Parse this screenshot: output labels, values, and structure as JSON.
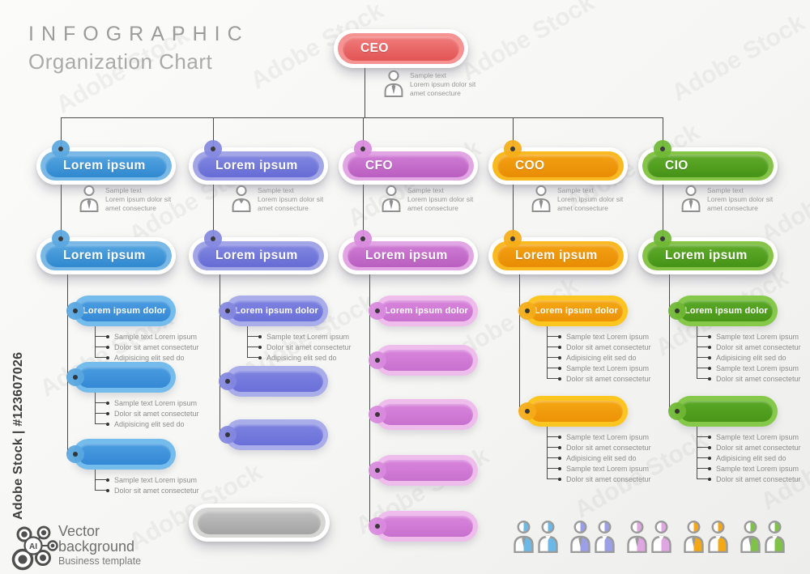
{
  "watermark": {
    "tile_label": "Adobe Stock",
    "id_label": "Adobe Stock | #123607026"
  },
  "header": {
    "title": "INFOGRAPHIC",
    "subtitle": "Organization Chart"
  },
  "footer": {
    "logo_text": "AI",
    "line1": "Vector",
    "line2": "background",
    "line3": "Business template"
  },
  "profile_note": {
    "line1": "Sample text",
    "line2": "Lorem ipsum dolor sit",
    "line3": "amet consecture"
  },
  "colors": {
    "red": {
      "mid": "#f59292",
      "top": "#f17c7c",
      "bot": "#e25454",
      "circle": "#ef8a8a"
    },
    "blue": {
      "mid": "#7ab9e6",
      "top": "#55a5e0",
      "bot": "#2f88cf",
      "smMid": "#74bcec",
      "smTop": "#4a9de0",
      "smBot": "#3588d4",
      "circle": "#5aa7e0"
    },
    "purple": {
      "mid": "#a3a6e6",
      "top": "#8287e0",
      "bot": "#666cd4",
      "smMid": "#a9ade9",
      "smTop": "#7d82e0",
      "smBot": "#6a70d8",
      "circle": "#8488e0"
    },
    "pink": {
      "mid": "#e2a6e4",
      "top": "#cf7cd4",
      "bot": "#b95ec0",
      "smMid": "#eebdeb",
      "smTop": "#d885dc",
      "smBot": "#c870ce",
      "circle": "#d98ade"
    },
    "orange": {
      "mid": "#f8ba20",
      "top": "#f4a112",
      "bot": "#e88c04",
      "smMid": "#fcc51f",
      "smTop": "#f5a713",
      "smBot": "#ec9206",
      "circle": "#f6ad18"
    },
    "green": {
      "mid": "#85c447",
      "top": "#61ab2a",
      "bot": "#459317",
      "smMid": "#86c84a",
      "smTop": "#5aa826",
      "smBot": "#499619",
      "circle": "#6fb834"
    },
    "gray": {
      "mid": "#d6d6d5",
      "top": "#c0c0c0",
      "bot": "#a4a4a4",
      "circle": "#c4c4c4"
    },
    "line": "#4b4b4b"
  },
  "chart": {
    "root": {
      "label": "CEO",
      "color": "red",
      "icon": "person-tie-icon"
    },
    "columns": [
      {
        "color": "blue",
        "level1_label": "Lorem ipsum",
        "level2_label": "Lorem ipsum",
        "icon": "person-tie-icon",
        "children": [
          {
            "label": "Lorem ipsum dolor",
            "bullets": [
              "Sample text Lorem ipsum",
              "Dolor sit amet consectetur",
              "Adipisicing elit sed do"
            ]
          },
          {
            "label": "",
            "bullets": [
              "Sample text Lorem ipsum",
              "Dolor sit amet consectetur",
              "Adipisicing elit sed do"
            ]
          },
          {
            "label": "",
            "bullets": [
              "Sample text Lorem ipsum",
              "Dolor sit amet consectetur"
            ]
          }
        ]
      },
      {
        "color": "purple",
        "level1_label": "Lorem ipsum",
        "level2_label": "Lorem ipsum",
        "icon": "person-vneck-icon",
        "children": [
          {
            "label": "Lorem ipsum dolor",
            "bullets": [
              "Sample text Lorem ipsum",
              "Dolor sit amet consectetur",
              "Adipisicing elit sed do"
            ]
          },
          {
            "label": "",
            "bullets": []
          },
          {
            "label": "",
            "bullets": []
          }
        ]
      },
      {
        "color": "pink",
        "level1_label": "CFO",
        "level2_label": "Lorem ipsum",
        "icon": "person-tie-icon",
        "children": [
          {
            "label": "Lorem ipsum dolor",
            "bullets": []
          },
          {
            "label": "",
            "bullets": []
          },
          {
            "label": "",
            "bullets": []
          },
          {
            "label": "",
            "bullets": []
          },
          {
            "label": "",
            "bullets": []
          }
        ]
      },
      {
        "color": "orange",
        "level1_label": "COO",
        "level2_label": "Lorem ipsum",
        "icon": "person-tie-icon",
        "children": [
          {
            "label": "Lorem ipsum dolor",
            "bullets": [
              "Sample text Lorem ipsum",
              "Dolor sit amet consectetur",
              "Adipisicing elit sed do",
              "Sample text Lorem ipsum",
              "Dolor sit amet consectetur"
            ]
          },
          {
            "label": "",
            "bullets": [
              "Sample text Lorem ipsum",
              "Dolor sit amet consectetur",
              "Adipisicing elit sed do",
              "Sample text Lorem ipsum",
              "Dolor sit amet consectetur"
            ]
          }
        ]
      },
      {
        "color": "green",
        "level1_label": "CIO",
        "level2_label": "Lorem ipsum",
        "icon": "person-tie-icon",
        "children": [
          {
            "label": "Lorem ipsum dolor",
            "bullets": [
              "Sample text Lorem ipsum",
              "Dolor sit amet consectetur",
              "Adipisicing elit sed do",
              "Sample text Lorem ipsum",
              "Dolor sit amet consectetur"
            ]
          },
          {
            "label": "",
            "bullets": [
              "Sample text Lorem ipsum",
              "Dolor sit amet consectetur",
              "Adipisicing elit sed do",
              "Sample text Lorem ipsum",
              "Dolor sit amet consectetur"
            ]
          }
        ]
      }
    ],
    "extra": {
      "label": "",
      "color": "gray"
    }
  },
  "legend_people": [
    {
      "color_name": "blue",
      "color": "#6cb9e8"
    },
    {
      "color_name": "purple",
      "color": "#9b9fe6"
    },
    {
      "color_name": "pink",
      "color": "#e0a6e2"
    },
    {
      "color_name": "orange",
      "color": "#f3a816"
    },
    {
      "color_name": "green",
      "color": "#7fc24a"
    }
  ]
}
